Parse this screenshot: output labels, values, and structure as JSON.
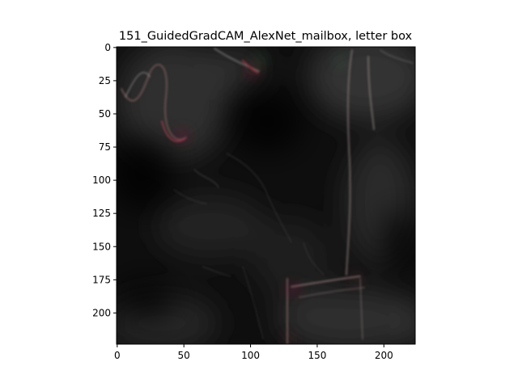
{
  "figure": {
    "title": "151_GuidedGradCAM_AlexNet_mailbox, letter box"
  },
  "image_axes": {
    "x_ticks": [
      "0",
      "50",
      "100",
      "150",
      "200"
    ],
    "y_ticks": [
      "0",
      "25",
      "50",
      "75",
      "100",
      "125",
      "150",
      "175",
      "200"
    ],
    "x_range": [
      0,
      224
    ],
    "y_range": [
      0,
      224
    ],
    "colors": {
      "background": "#ffffff",
      "image_base": "#0d0d0d",
      "haze": "#3a3a3a",
      "axis": "#000000"
    }
  }
}
